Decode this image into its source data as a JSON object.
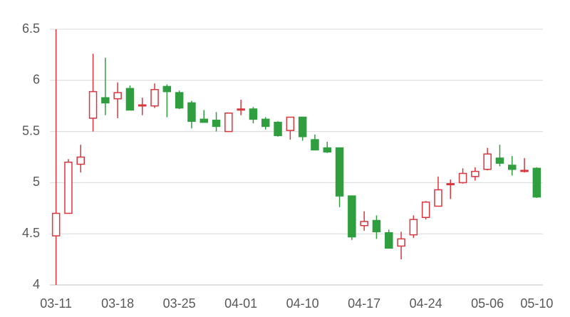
{
  "chart_data": {
    "type": "candlestick",
    "categories": [
      "03-11",
      null,
      null,
      null,
      null,
      "03-18",
      null,
      null,
      null,
      null,
      "03-25",
      null,
      null,
      null,
      null,
      "04-01",
      null,
      null,
      null,
      null,
      "04-10",
      null,
      null,
      null,
      null,
      "04-17",
      null,
      null,
      null,
      null,
      "04-24",
      null,
      null,
      null,
      null,
      "05-06",
      null,
      null,
      null,
      "05-10"
    ],
    "open": [
      4.48,
      4.7,
      5.18,
      5.63,
      5.83,
      5.82,
      5.92,
      5.75,
      5.75,
      5.94,
      5.88,
      5.78,
      5.62,
      5.61,
      5.5,
      5.71,
      5.72,
      5.62,
      5.59,
      5.51,
      5.64,
      5.42,
      5.34,
      5.34,
      4.87,
      4.58,
      4.63,
      4.51,
      4.38,
      4.49,
      4.66,
      4.77,
      4.98,
      5.0,
      5.06,
      5.13,
      5.24,
      5.17,
      5.11,
      5.14
    ],
    "high": [
      6.5,
      5.23,
      5.37,
      6.26,
      6.22,
      5.98,
      5.95,
      5.83,
      5.97,
      5.96,
      5.9,
      5.8,
      5.71,
      5.69,
      5.68,
      5.81,
      5.74,
      5.64,
      5.6,
      5.64,
      5.64,
      5.47,
      5.4,
      5.34,
      4.87,
      4.72,
      4.68,
      4.54,
      4.52,
      4.68,
      4.82,
      5.06,
      5.03,
      5.14,
      5.15,
      5.34,
      5.37,
      5.26,
      5.24,
      5.15
    ],
    "low": [
      4.0,
      4.7,
      5.1,
      5.5,
      5.66,
      5.63,
      5.71,
      5.66,
      5.73,
      5.64,
      5.72,
      5.53,
      5.59,
      5.5,
      5.5,
      5.66,
      5.58,
      5.52,
      5.45,
      5.42,
      5.41,
      5.32,
      5.29,
      4.76,
      4.44,
      4.53,
      4.45,
      4.36,
      4.25,
      4.46,
      4.64,
      4.77,
      4.84,
      4.99,
      5.02,
      5.12,
      5.16,
      5.07,
      5.1,
      4.85
    ],
    "close": [
      4.7,
      5.2,
      5.25,
      5.89,
      5.78,
      5.88,
      5.71,
      5.76,
      5.91,
      5.89,
      5.73,
      5.6,
      5.59,
      5.55,
      5.68,
      5.72,
      5.62,
      5.55,
      5.46,
      5.64,
      5.45,
      5.32,
      5.3,
      4.87,
      4.47,
      4.62,
      4.52,
      4.36,
      4.45,
      4.64,
      4.81,
      4.93,
      4.99,
      5.09,
      5.11,
      5.28,
      5.19,
      5.13,
      5.12,
      4.86
    ],
    "up_color": "#d9363e",
    "down_color": "#2e9e3e",
    "ylim": [
      4,
      6.5
    ],
    "yticks": [
      4,
      4.5,
      5,
      5.5,
      6,
      6.5
    ],
    "grid": true
  }
}
